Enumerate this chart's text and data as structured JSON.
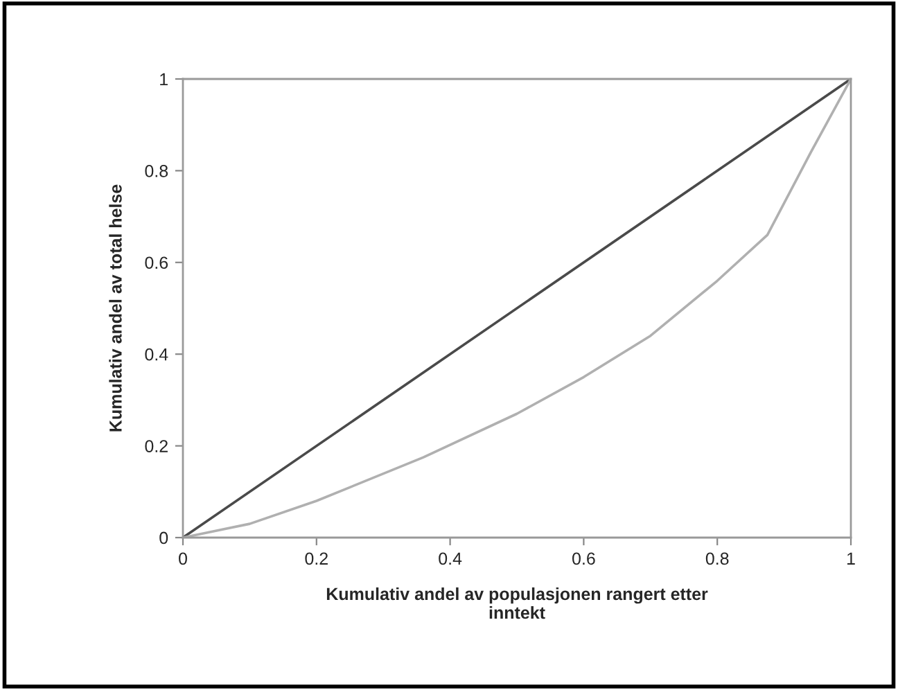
{
  "chart_data": {
    "type": "line",
    "xlabel": "Kumulativ andel av populasjonen rangert etter\ninntekt",
    "ylabel": "Kumulativ andel av total helse",
    "series": [
      {
        "x": [
          0,
          1
        ],
        "values": [
          0,
          1
        ],
        "color": "#4a4a4a"
      },
      {
        "x": [
          0,
          0.1,
          0.2,
          0.36,
          0.5,
          0.6,
          0.7,
          0.8,
          0.875,
          0.94,
          1
        ],
        "values": [
          0,
          0.03,
          0.08,
          0.175,
          0.27,
          0.35,
          0.44,
          0.56,
          0.66,
          0.84,
          1
        ],
        "color": "#b0b0b0"
      }
    ],
    "xlim": [
      0,
      1
    ],
    "ylim": [
      0,
      1
    ],
    "xticks": [
      0,
      0.2,
      0.4,
      0.6,
      0.8,
      1
    ],
    "yticks": [
      0,
      0.2,
      0.4,
      0.6,
      0.8,
      1
    ],
    "grid": false,
    "marker": "none",
    "line_style": "solid"
  }
}
